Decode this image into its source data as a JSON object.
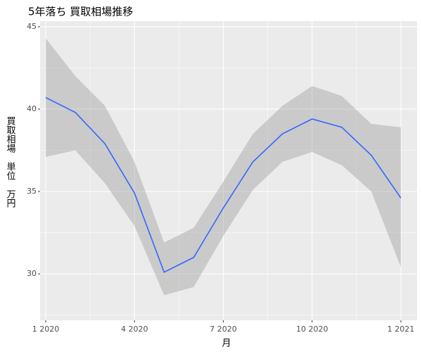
{
  "chart_data": {
    "type": "smooth",
    "title": "5年落ち 買取相場推移",
    "x_label": "月",
    "y_label": "買取相場　単位　万円",
    "x": [
      "2020-01",
      "2020-02",
      "2020-03",
      "2020-04",
      "2020-05",
      "2020-06",
      "2020-07",
      "2020-08",
      "2020-09",
      "2020-10",
      "2020-11",
      "2020-12",
      "2021-01"
    ],
    "series": [
      {
        "color": "#3366ff",
        "band_color": "#999999",
        "values": [
          40.7,
          39.8,
          37.9,
          34.9,
          30.1,
          31.0,
          34.0,
          36.8,
          38.5,
          39.4,
          38.9,
          37.2,
          34.6
        ],
        "lower": [
          37.1,
          37.5,
          35.5,
          32.9,
          28.7,
          29.2,
          32.3,
          35.1,
          36.8,
          37.4,
          36.6,
          35.0,
          30.4
        ],
        "upper": [
          44.3,
          42.0,
          40.2,
          36.8,
          31.9,
          32.8,
          35.6,
          38.5,
          40.2,
          41.4,
          40.8,
          39.1,
          38.9
        ]
      }
    ],
    "ylim": [
      27.18,
      45.34
    ],
    "yticks": [
      30,
      35,
      40,
      45
    ],
    "xticks": [
      {
        "value": "2020-01",
        "label": "1 2020"
      },
      {
        "value": "2020-04",
        "label": "4 2020"
      },
      {
        "value": "2020-07",
        "label": "7 2020"
      },
      {
        "value": "2020-10",
        "label": "10 2020"
      },
      {
        "value": "2021-01",
        "label": "1 2021"
      }
    ],
    "grid": true
  }
}
